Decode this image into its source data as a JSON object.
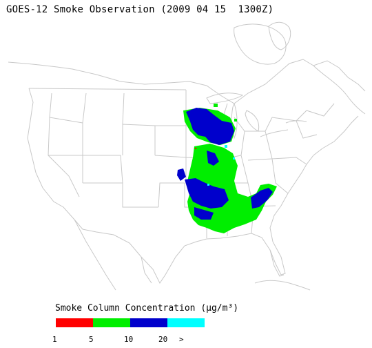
{
  "title": "GOES-12 Smoke Observation (2009 04 15  1300Z)",
  "legend": {
    "title": "Smoke Column Concentration (μg/m³)",
    "colors": [
      "#ff0000",
      "#00ee00",
      "#0000cc",
      "#00ffff"
    ],
    "ticks": [
      "1",
      "5",
      "10",
      "20",
      ">"
    ]
  },
  "map": {
    "boundary_color": "#c8c8c8",
    "smoke_regions": [
      {
        "level": "10-20",
        "color": "#0000cc",
        "area": "Minnesota / Iowa"
      },
      {
        "level": "5-10",
        "color": "#00ee00",
        "area": "Missouri / Arkansas / Louisiana"
      },
      {
        "level": "5-10",
        "color": "#00ee00",
        "area": "Mississippi / Alabama / Georgia"
      },
      {
        "level": "10-20",
        "color": "#0000cc",
        "area": "Oklahoma / Arkansas"
      }
    ]
  }
}
